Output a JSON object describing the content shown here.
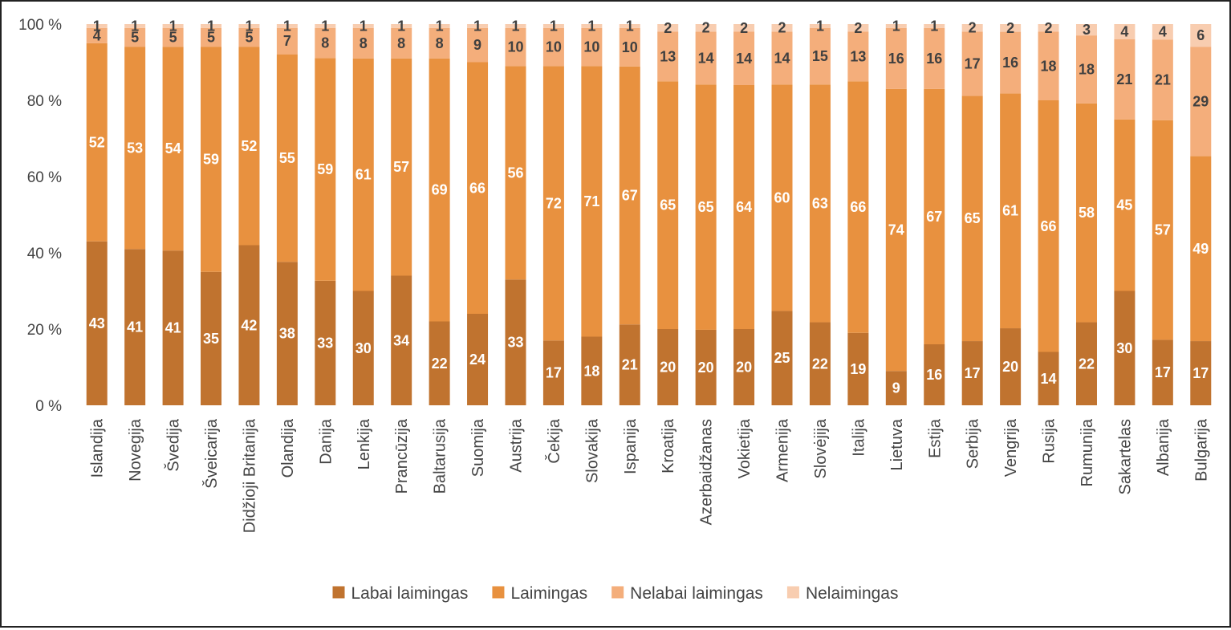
{
  "chart_data": {
    "type": "bar",
    "stacked": true,
    "percent_stacked": true,
    "title": "",
    "xlabel": "",
    "ylabel": "",
    "ylim": [
      0,
      100
    ],
    "y_ticks": [
      "0 %",
      "20 %",
      "40 %",
      "60 %",
      "80 %",
      "100 %"
    ],
    "grid": false,
    "legend_position": "bottom",
    "categories": [
      "Islandija",
      "Novegija",
      "Švedija",
      "Šveicarija",
      "Didžioji Britanija",
      "Olandija",
      "Danija",
      "Lenkija",
      "Prancūzija",
      "Baltarusija",
      "Suomija",
      "Austrija",
      "Čekija",
      "Slovakija",
      "Ispanija",
      "Kroatija",
      "Azerbaidžanas",
      "Vokietija",
      "Armenija",
      "Slovėjija",
      "Italija",
      "Lietuva",
      "Estija",
      "Serbija",
      "Vengrija",
      "Rusija",
      "Rumunija",
      "Sakartelas",
      "Albanija",
      "Bulgarija"
    ],
    "series": [
      {
        "name": "Labai laimingas",
        "color": "#c0732f",
        "label_color": "#ffffff",
        "values": [
          43,
          41,
          41,
          35,
          42,
          38,
          33,
          30,
          34,
          22,
          24,
          33,
          17,
          18,
          21,
          20,
          20,
          20,
          25,
          22,
          19,
          9,
          16,
          17,
          20,
          14,
          22,
          30,
          17,
          17
        ]
      },
      {
        "name": "Laimingas",
        "color": "#e8913f",
        "label_color": "#ffffff",
        "values": [
          52,
          53,
          54,
          59,
          52,
          55,
          59,
          61,
          57,
          69,
          66,
          56,
          72,
          71,
          67,
          65,
          65,
          64,
          60,
          63,
          66,
          74,
          67,
          65,
          61,
          66,
          58,
          45,
          57,
          49
        ]
      },
      {
        "name": "Nelabai laimingas",
        "color": "#f4ae7b",
        "label_color": "#404040",
        "values": [
          4,
          5,
          5,
          5,
          5,
          7,
          8,
          8,
          8,
          8,
          9,
          10,
          10,
          10,
          10,
          13,
          14,
          14,
          14,
          15,
          13,
          16,
          16,
          17,
          16,
          18,
          18,
          21,
          21,
          29
        ]
      },
      {
        "name": "Nelaimingas",
        "color": "#f8cdb0",
        "label_color": "#404040",
        "values": [
          1,
          1,
          1,
          1,
          1,
          1,
          1,
          1,
          1,
          1,
          1,
          1,
          1,
          1,
          1,
          2,
          2,
          2,
          2,
          1,
          2,
          1,
          1,
          2,
          2,
          2,
          3,
          4,
          4,
          6
        ]
      }
    ]
  }
}
